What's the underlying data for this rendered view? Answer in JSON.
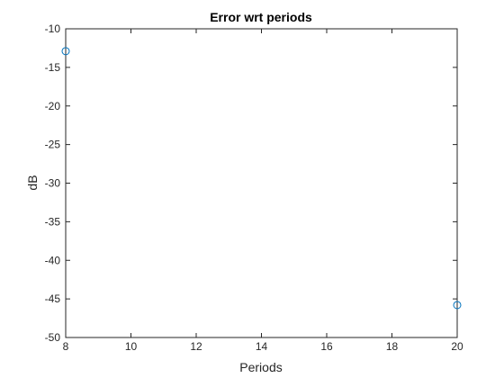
{
  "chart_data": {
    "type": "scatter",
    "title": "Error wrt periods",
    "xlabel": "Periods",
    "ylabel": "dB",
    "xlim": [
      8,
      20
    ],
    "ylim": [
      -50,
      -10
    ],
    "xticks": [
      "8",
      "10",
      "12",
      "14",
      "16",
      "18",
      "20"
    ],
    "yticks": [
      "-10",
      "-15",
      "-20",
      "-25",
      "-30",
      "-35",
      "-40",
      "-45",
      "-50"
    ],
    "grid": false,
    "marker": "circle",
    "series": [
      {
        "x": [
          8,
          20
        ],
        "y": [
          -12.9,
          -45.8
        ]
      }
    ]
  },
  "colors": {
    "marker": "#0072BD",
    "axes": "#262626",
    "background": "#ffffff"
  }
}
